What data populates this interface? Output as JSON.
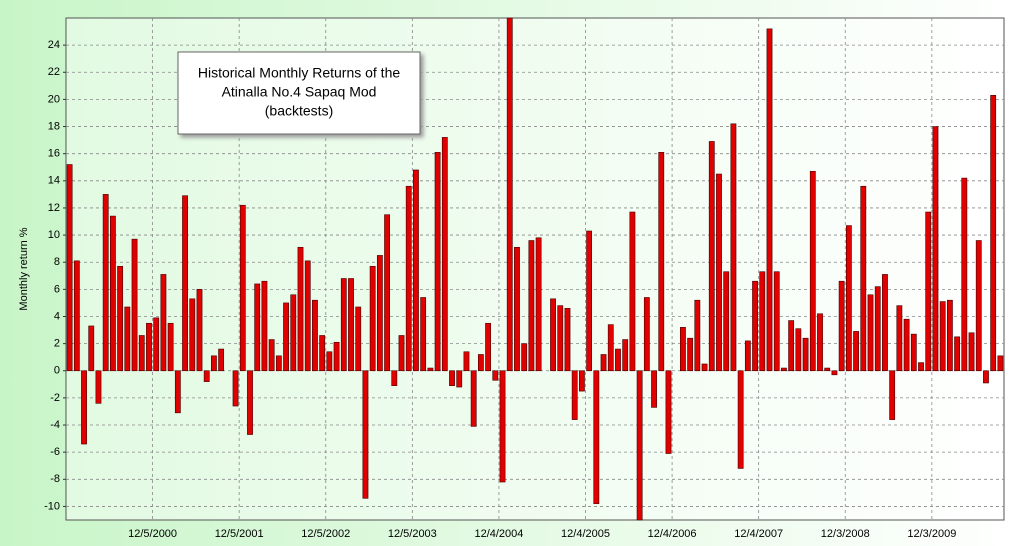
{
  "chart_data": {
    "type": "bar",
    "title_lines": [
      "Historical Monthly Returns of the",
      "Atinalla No.4 Sapaq Mod",
      "(backtests)"
    ],
    "y_label": "Monthly return %",
    "color": "#e00000",
    "grid": true,
    "ylim": [
      -11,
      26
    ],
    "yticks": [
      -10,
      -8,
      -6,
      -4,
      -2,
      0,
      2,
      4,
      6,
      8,
      10,
      12,
      14,
      16,
      18,
      20,
      22,
      24
    ],
    "categories": [
      null,
      null,
      null,
      null,
      null,
      null,
      null,
      null,
      null,
      null,
      null,
      null,
      "12/5/2000",
      null,
      null,
      null,
      null,
      null,
      null,
      null,
      null,
      null,
      null,
      null,
      "12/5/2001",
      null,
      null,
      null,
      null,
      null,
      null,
      null,
      null,
      null,
      null,
      null,
      "12/5/2002",
      null,
      null,
      null,
      null,
      null,
      null,
      null,
      null,
      null,
      null,
      null,
      "12/5/2003",
      null,
      null,
      null,
      null,
      null,
      null,
      null,
      null,
      null,
      null,
      null,
      "12/4/2004",
      null,
      null,
      null,
      null,
      null,
      null,
      null,
      null,
      null,
      null,
      null,
      "12/4/2005",
      null,
      null,
      null,
      null,
      null,
      null,
      null,
      null,
      null,
      null,
      null,
      "12/4/2006",
      null,
      null,
      null,
      null,
      null,
      null,
      null,
      null,
      null,
      null,
      null,
      "12/4/2007",
      null,
      null,
      null,
      null,
      null,
      null,
      null,
      null,
      null,
      null,
      null,
      "12/3/2008",
      null,
      null,
      null,
      null,
      null,
      null,
      null,
      null,
      null,
      null,
      null,
      "12/3/2009",
      null,
      null,
      null,
      null,
      null,
      null,
      null,
      null,
      null
    ],
    "values": [
      15.2,
      8.1,
      -5.4,
      3.3,
      -2.4,
      13.0,
      11.4,
      7.7,
      4.7,
      9.7,
      2.6,
      3.5,
      3.9,
      7.1,
      3.5,
      -3.1,
      12.9,
      5.3,
      6.0,
      -0.8,
      1.1,
      1.6,
      0,
      -2.6,
      12.2,
      -4.7,
      6.4,
      6.6,
      2.3,
      1.1,
      5.0,
      5.6,
      9.1,
      8.1,
      5.2,
      2.6,
      1.4,
      2.1,
      6.8,
      6.8,
      4.7,
      -9.4,
      7.7,
      8.5,
      11.5,
      -1.1,
      2.6,
      13.6,
      14.8,
      5.4,
      0.2,
      16.1,
      17.2,
      -1.1,
      -1.2,
      1.4,
      -4.1,
      1.2,
      3.5,
      -0.7,
      -8.2,
      26,
      9.1,
      2.0,
      9.6,
      9.8,
      0,
      5.3,
      4.8,
      4.6,
      -3.6,
      -1.5,
      10.3,
      -9.8,
      1.2,
      3.4,
      1.6,
      2.3,
      11.7,
      -11,
      5.4,
      -2.7,
      16.1,
      -6.1,
      0,
      3.2,
      2.4,
      5.2,
      0.5,
      16.9,
      14.5,
      7.3,
      18.2,
      -7.2,
      2.2,
      6.6,
      7.3,
      25.2,
      7.3,
      0.2,
      3.7,
      3.1,
      2.4,
      14.7,
      4.2,
      0.2,
      -0.3,
      6.6,
      10.7,
      2.9,
      13.6,
      5.6,
      6.2,
      7.1,
      -3.6,
      4.8,
      3.8,
      2.7,
      0.6,
      11.7,
      18.0,
      5.1,
      5.2,
      2.5,
      14.2,
      2.8,
      9.6,
      -0.9,
      20.3,
      1.1
    ]
  }
}
